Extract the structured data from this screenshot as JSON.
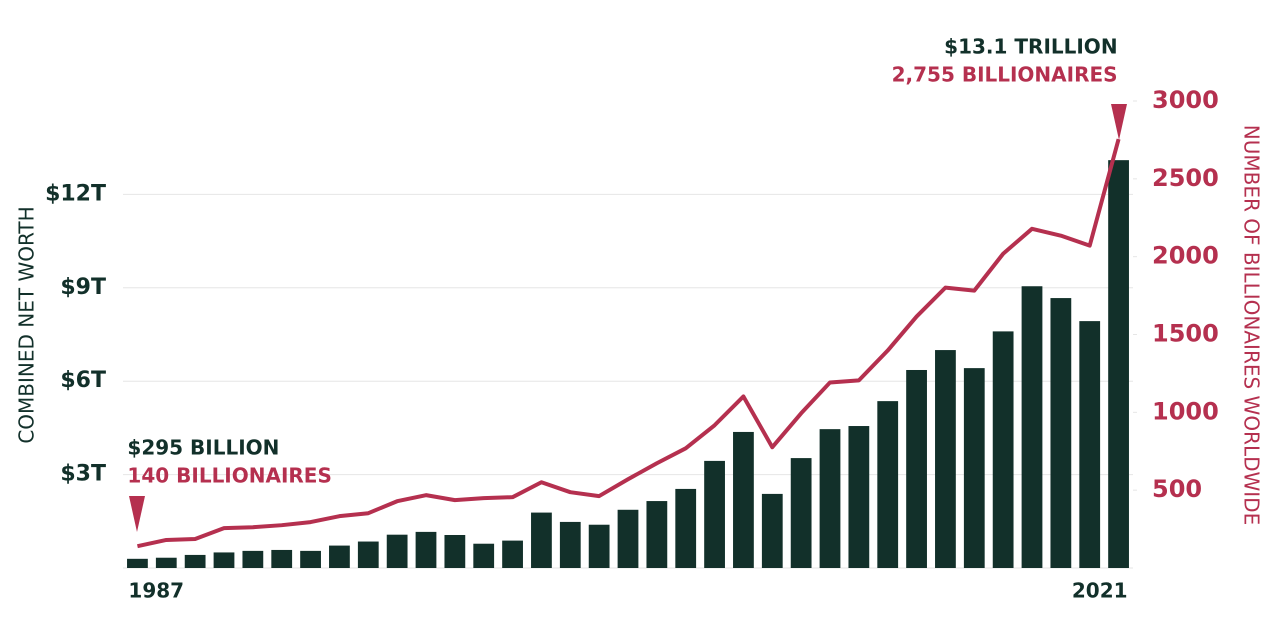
{
  "chart_data": {
    "type": "bar",
    "categories": [
      "1987",
      null,
      null,
      null,
      null,
      null,
      null,
      null,
      null,
      null,
      null,
      null,
      null,
      null,
      null,
      null,
      null,
      null,
      null,
      null,
      null,
      null,
      null,
      null,
      null,
      null,
      null,
      null,
      null,
      null,
      null,
      null,
      null,
      null,
      "2021"
    ],
    "series": [
      {
        "color": "#12302a",
        "values": [
          0.295,
          0.33,
          0.42,
          0.5,
          0.55,
          0.58,
          0.55,
          0.72,
          0.85,
          1.07,
          1.16,
          1.06,
          0.78,
          0.88,
          1.78,
          1.48,
          1.39,
          1.87,
          2.15,
          2.54,
          3.44,
          4.37,
          2.38,
          3.53,
          4.46,
          4.56,
          5.36,
          6.36,
          7.0,
          6.42,
          7.6,
          9.05,
          8.67,
          7.93,
          13.1
        ]
      },
      {
        "type": "line",
        "axis": "y2",
        "color": "#b5304f",
        "values": [
          140,
          180,
          186,
          256,
          262,
          275,
          295,
          333,
          352,
          429,
          468,
          436,
          449,
          455,
          551,
          487,
          462,
          570,
          673,
          769,
          917,
          1102,
          776,
          994,
          1192,
          1205,
          1397,
          1615,
          1801,
          1782,
          2019,
          2179,
          2135,
          2071,
          2755
        ]
      }
    ],
    "ylabel": "COMBINED NET WORTH",
    "y2label": "NUMBER OF BILLIONAIRES WORLDWIDE",
    "ylim": [
      0,
      15
    ],
    "yticks": [
      {
        "value": 3,
        "label": "$3T"
      },
      {
        "value": 6,
        "label": "$6T"
      },
      {
        "value": 9,
        "label": "$9T"
      },
      {
        "value": 12,
        "label": "$12T"
      }
    ],
    "y2lim": [
      0,
      3000
    ],
    "y2ticks": [
      500,
      1000,
      1500,
      2000,
      2500,
      3000
    ],
    "grid": true,
    "annotations": [
      {
        "lines": [
          {
            "text": "$295 BILLION",
            "color": "#12302a"
          },
          {
            "text": "140 BILLIONAIRES",
            "color": "#b5304f"
          }
        ]
      },
      {
        "lines": [
          {
            "text": "$13.1 TRILLION",
            "color": "#12302a"
          },
          {
            "text": "2,755 BILLIONAIRES",
            "color": "#b5304f"
          }
        ]
      }
    ]
  }
}
